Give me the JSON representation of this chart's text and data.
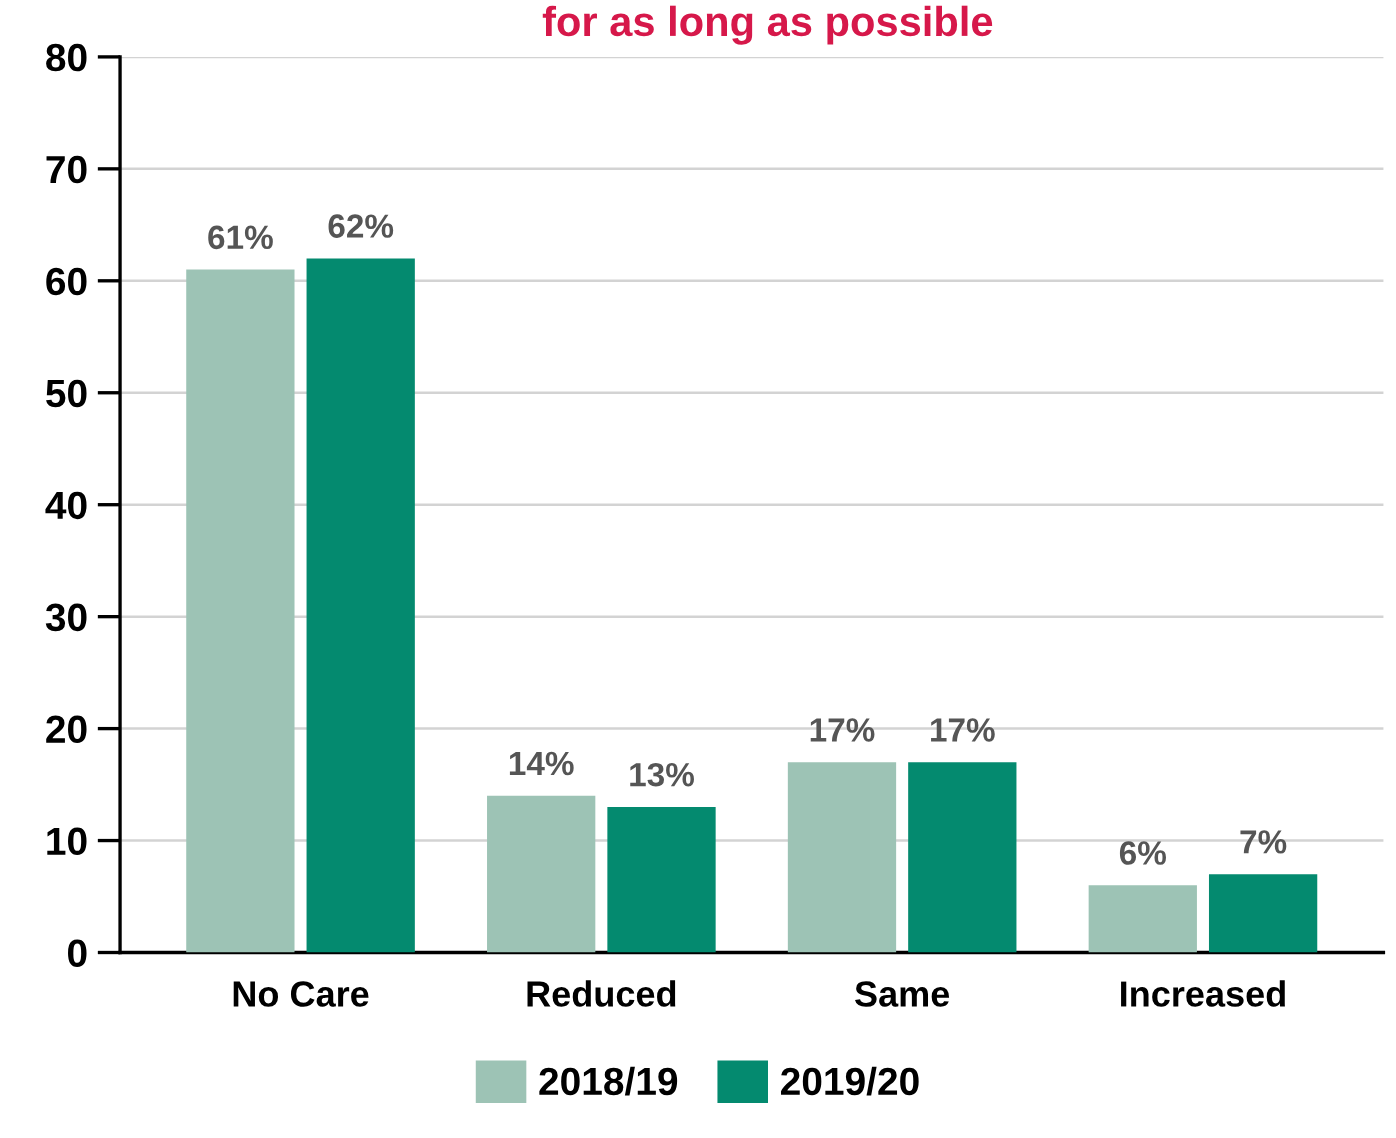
{
  "chart_data": {
    "type": "bar",
    "title": "for as long as possible",
    "categories": [
      "No Care",
      "Reduced",
      "Same",
      "Increased"
    ],
    "series": [
      {
        "name": "2018/19",
        "color": "#9dc3b5",
        "values": [
          61,
          14,
          17,
          6
        ],
        "value_labels": [
          "61%",
          "14%",
          "17%",
          "6%"
        ]
      },
      {
        "name": "2019/20",
        "color": "#048a6f",
        "values": [
          62,
          13,
          17,
          7
        ],
        "value_labels": [
          "62%",
          "13%",
          "17%",
          "7%"
        ]
      }
    ],
    "ylim": [
      0,
      80
    ],
    "yticks": [
      0,
      10,
      20,
      30,
      40,
      50,
      60,
      70,
      80
    ],
    "grid": "y",
    "legend": "bottom"
  }
}
